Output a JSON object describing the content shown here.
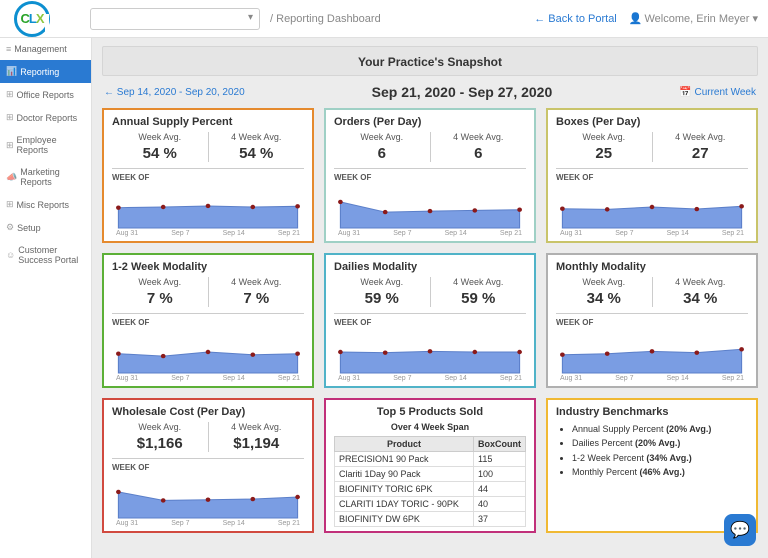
{
  "top": {
    "breadcrumb": "Reporting Dashboard",
    "back": "← Back to Portal",
    "welcome_prefix": "Welcome, ",
    "user": "Erin Meyer"
  },
  "sidebar": {
    "items": [
      {
        "icon": "≡",
        "label": "Management"
      },
      {
        "icon": "📊",
        "label": "Reporting"
      },
      {
        "icon": "⊞",
        "label": "Office Reports"
      },
      {
        "icon": "⊞",
        "label": "Doctor Reports"
      },
      {
        "icon": "⊞",
        "label": "Employee Reports"
      },
      {
        "icon": "📣",
        "label": "Marketing Reports"
      },
      {
        "icon": "⊞",
        "label": "Misc Reports"
      },
      {
        "icon": "⚙",
        "label": "Setup"
      },
      {
        "icon": "☺",
        "label": "Customer Success Portal"
      }
    ],
    "active_index": 1
  },
  "header": {
    "snapshot_title": "Your Practice's Snapshot",
    "prev_range": "←  Sep 14, 2020 - Sep 20, 2020",
    "range": "Sep 21, 2020 - Sep 27, 2020",
    "current_week": "📅 Current Week"
  },
  "chart_meta": {
    "xlabels": [
      "Aug 31",
      "Sep 7",
      "Sep 14",
      "Sep 21"
    ],
    "area_fill": "#7a9de3",
    "area_stroke": "#5b7fc9",
    "point_fill": "#8b1a1a",
    "label_week": "Week Avg.",
    "label_4week": "4 Week Avg.",
    "label_weekof": "WEEK OF"
  },
  "cards": [
    {
      "title": "Annual Supply Percent",
      "color": "orange",
      "week": "54 %",
      "four": "54 %",
      "points": [
        0.52,
        0.5,
        0.47,
        0.5,
        0.48
      ]
    },
    {
      "title": "Orders (Per Day)",
      "color": "teal",
      "week": "6",
      "four": "6",
      "points": [
        0.35,
        0.65,
        0.62,
        0.6,
        0.58
      ]
    },
    {
      "title": "Boxes (Per Day)",
      "color": "khaki",
      "week": "25",
      "four": "27",
      "points": [
        0.55,
        0.57,
        0.5,
        0.56,
        0.48
      ]
    },
    {
      "title": "1-2 Week Modality",
      "color": "green",
      "week": "7 %",
      "four": "7 %",
      "points": [
        0.55,
        0.62,
        0.5,
        0.58,
        0.55
      ]
    },
    {
      "title": "Dailies Modality",
      "color": "cyan",
      "week": "59 %",
      "four": "59 %",
      "points": [
        0.5,
        0.52,
        0.48,
        0.5,
        0.5
      ]
    },
    {
      "title": "Monthly Modality",
      "color": "gray",
      "week": "34 %",
      "four": "34 %",
      "points": [
        0.58,
        0.55,
        0.48,
        0.52,
        0.42
      ]
    },
    {
      "title": "Wholesale Cost (Per Day)",
      "color": "red",
      "week": "$1,166",
      "four": "$1,194",
      "points": [
        0.35,
        0.6,
        0.58,
        0.56,
        0.5
      ]
    }
  ],
  "top5": {
    "title": "Top 5 Products Sold",
    "subtitle": "Over 4 Week Span",
    "color": "magenta",
    "columns": [
      "Product",
      "BoxCount"
    ],
    "rows": [
      [
        "PRECISION1 90 Pack",
        "115"
      ],
      [
        "Clariti 1Day 90 Pack",
        "100"
      ],
      [
        "BIOFINITY TORIC 6PK",
        "44"
      ],
      [
        "CLARITI 1DAY TORIC - 90PK",
        "40"
      ],
      [
        "BIOFINITY DW 6PK",
        "37"
      ]
    ]
  },
  "benchmarks": {
    "title": "Industry Benchmarks",
    "color": "gold",
    "items": [
      {
        "label": "Annual Supply Percent",
        "value": "(20% Avg.)"
      },
      {
        "label": "Dailies Percent",
        "value": "(20% Avg.)"
      },
      {
        "label": "1-2 Week Percent",
        "value": "(34% Avg.)"
      },
      {
        "label": "Monthly Percent",
        "value": "(46% Avg.)"
      }
    ]
  }
}
